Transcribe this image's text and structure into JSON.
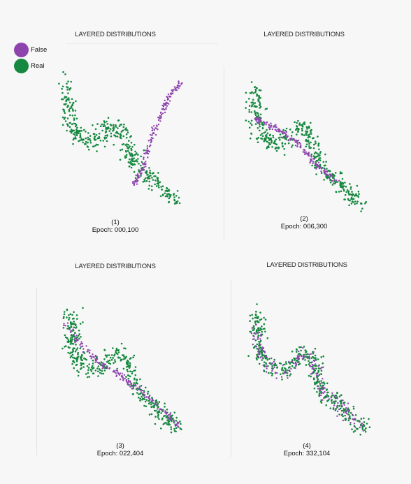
{
  "legend": {
    "items": [
      {
        "label": "False",
        "color": "#8e44ad"
      },
      {
        "label": "Real",
        "color": "#16883f"
      }
    ]
  },
  "colors": {
    "false": "#8e44ad",
    "real": "#16883f",
    "background": "#f7f7f7"
  },
  "chart_data": [
    {
      "type": "scatter",
      "title": "LAYERED DISTRIBUTIONS",
      "caption_index": "(1)",
      "caption_epoch": "Epoch: 000,100",
      "real_path": [
        [
          0.05,
          0.02
        ],
        [
          0.06,
          0.3
        ],
        [
          0.15,
          0.47
        ],
        [
          0.3,
          0.49
        ],
        [
          0.4,
          0.36
        ],
        [
          0.49,
          0.36
        ],
        [
          0.55,
          0.52
        ],
        [
          0.62,
          0.71
        ],
        [
          0.72,
          0.76
        ],
        [
          0.85,
          0.9
        ],
        [
          0.97,
          0.98
        ]
      ],
      "false_path": [
        [
          0.6,
          0.85
        ],
        [
          0.67,
          0.72
        ],
        [
          0.75,
          0.45
        ],
        [
          0.82,
          0.29
        ],
        [
          0.9,
          0.1
        ],
        [
          1.0,
          0.0
        ]
      ]
    },
    {
      "type": "scatter",
      "title": "LAYERED DISTRIBUTIONS",
      "caption_index": "(2)",
      "caption_epoch": "Epoch: 006,300",
      "real_path": [
        [
          0.05,
          0.02
        ],
        [
          0.06,
          0.3
        ],
        [
          0.15,
          0.47
        ],
        [
          0.3,
          0.49
        ],
        [
          0.4,
          0.36
        ],
        [
          0.49,
          0.36
        ],
        [
          0.55,
          0.52
        ],
        [
          0.62,
          0.71
        ],
        [
          0.72,
          0.76
        ],
        [
          0.85,
          0.9
        ],
        [
          0.97,
          0.98
        ]
      ],
      "false_path": [
        [
          0.05,
          0.28
        ],
        [
          0.25,
          0.37
        ],
        [
          0.45,
          0.52
        ],
        [
          0.6,
          0.68
        ],
        [
          0.75,
          0.8
        ]
      ]
    },
    {
      "type": "scatter",
      "title": "LAYERED DISTRIBUTIONS",
      "caption_index": "(3)",
      "caption_epoch": "Epoch: 022,404",
      "real_path": [
        [
          0.05,
          0.02
        ],
        [
          0.06,
          0.3
        ],
        [
          0.15,
          0.47
        ],
        [
          0.3,
          0.49
        ],
        [
          0.4,
          0.36
        ],
        [
          0.49,
          0.36
        ],
        [
          0.55,
          0.52
        ],
        [
          0.62,
          0.71
        ],
        [
          0.72,
          0.76
        ],
        [
          0.85,
          0.9
        ],
        [
          0.97,
          0.98
        ]
      ],
      "false_path": [
        [
          0.0,
          0.09
        ],
        [
          0.12,
          0.27
        ],
        [
          0.28,
          0.42
        ],
        [
          0.45,
          0.53
        ],
        [
          0.6,
          0.64
        ],
        [
          0.75,
          0.76
        ],
        [
          0.88,
          0.88
        ],
        [
          0.96,
          0.97
        ]
      ]
    },
    {
      "type": "scatter",
      "title": "LAYERED DISTRIBUTIONS",
      "caption_index": "(4)",
      "caption_epoch": "Epoch: 332,104",
      "real_path": [
        [
          0.05,
          0.02
        ],
        [
          0.06,
          0.3
        ],
        [
          0.15,
          0.47
        ],
        [
          0.3,
          0.49
        ],
        [
          0.4,
          0.36
        ],
        [
          0.49,
          0.36
        ],
        [
          0.55,
          0.52
        ],
        [
          0.62,
          0.71
        ],
        [
          0.72,
          0.76
        ],
        [
          0.85,
          0.9
        ],
        [
          0.97,
          0.98
        ]
      ],
      "false_path": [
        [
          0.05,
          0.1
        ],
        [
          0.06,
          0.3
        ],
        [
          0.15,
          0.47
        ],
        [
          0.3,
          0.49
        ],
        [
          0.4,
          0.36
        ],
        [
          0.49,
          0.36
        ],
        [
          0.55,
          0.52
        ],
        [
          0.62,
          0.71
        ],
        [
          0.72,
          0.76
        ],
        [
          0.85,
          0.9
        ],
        [
          0.97,
          0.98
        ]
      ]
    }
  ]
}
